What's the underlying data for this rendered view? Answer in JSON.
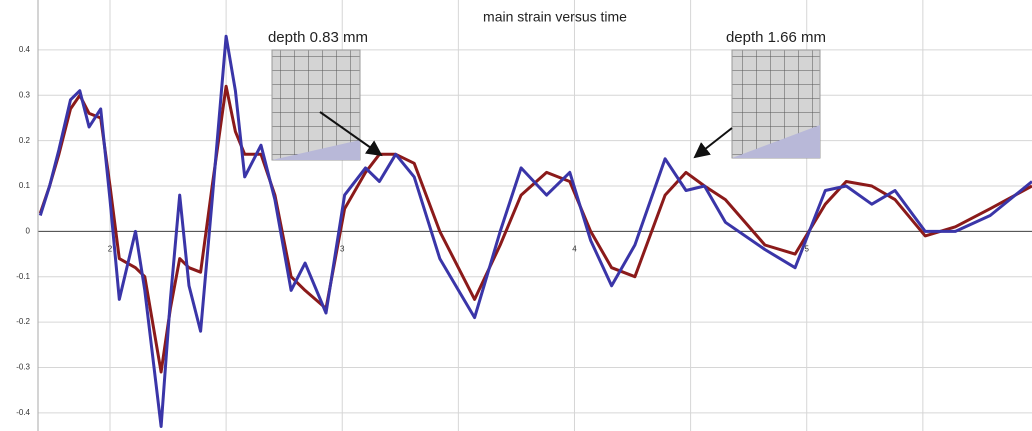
{
  "chart_data": {
    "type": "line",
    "title": "main strain versus time",
    "annotations": [
      "depth 0.83 mm",
      "depth 1.66 mm"
    ],
    "x": [
      1.7,
      1.74,
      1.78,
      1.83,
      1.87,
      1.91,
      1.96,
      2.0,
      2.04,
      2.11,
      2.15,
      2.22,
      2.26,
      2.3,
      2.34,
      2.39,
      2.44,
      2.5,
      2.54,
      2.58,
      2.65,
      2.71,
      2.78,
      2.84,
      2.93,
      3.01,
      3.1,
      3.16,
      3.23,
      3.31,
      3.42,
      3.57,
      3.68,
      3.77,
      3.88,
      3.98,
      4.07,
      4.16,
      4.26,
      4.39,
      4.48,
      4.56,
      4.65,
      4.82,
      4.95,
      5.08,
      5.17,
      5.28,
      5.38,
      5.51,
      5.64,
      5.79,
      5.97
    ],
    "series": [
      {
        "color": "#8b1a1a",
        "values": [
          0.04,
          0.1,
          0.17,
          0.27,
          0.3,
          0.26,
          0.25,
          0.1,
          -0.06,
          -0.08,
          -0.1,
          -0.31,
          -0.17,
          -0.06,
          -0.08,
          -0.09,
          0.1,
          0.32,
          0.22,
          0.17,
          0.17,
          0.08,
          -0.1,
          -0.13,
          -0.17,
          0.05,
          0.13,
          0.17,
          0.17,
          0.15,
          0.0,
          -0.15,
          -0.03,
          0.08,
          0.13,
          0.11,
          0.0,
          -0.08,
          -0.1,
          0.08,
          0.13,
          0.1,
          0.07,
          -0.03,
          -0.05,
          0.06,
          0.11,
          0.1,
          0.07,
          -0.01,
          0.01,
          0.05,
          0.1
        ]
      },
      {
        "color": "#3a35a8",
        "values": [
          0.035,
          0.1,
          0.18,
          0.29,
          0.31,
          0.23,
          0.27,
          0.07,
          -0.15,
          0.0,
          -0.13,
          -0.43,
          -0.15,
          0.08,
          -0.12,
          -0.22,
          0.07,
          0.43,
          0.31,
          0.12,
          0.19,
          0.07,
          -0.13,
          -0.07,
          -0.18,
          0.08,
          0.14,
          0.11,
          0.17,
          0.12,
          -0.06,
          -0.19,
          0.0,
          0.14,
          0.08,
          0.13,
          -0.02,
          -0.12,
          -0.03,
          0.16,
          0.09,
          0.1,
          0.02,
          -0.04,
          -0.08,
          0.09,
          0.1,
          0.06,
          0.09,
          0.0,
          0.0,
          0.035,
          0.11
        ]
      }
    ],
    "xlim": [
      1.69,
      5.97
    ],
    "ylim": [
      -0.44,
      0.51
    ],
    "xticks": [
      2,
      3,
      4,
      5
    ],
    "xgrid_minor": [
      2.5,
      3.5,
      4.5,
      5.5
    ],
    "yticks": [
      -0.4,
      -0.3,
      -0.2,
      -0.1,
      0,
      0.1,
      0.2,
      0.3,
      0.4
    ],
    "grid": true
  }
}
